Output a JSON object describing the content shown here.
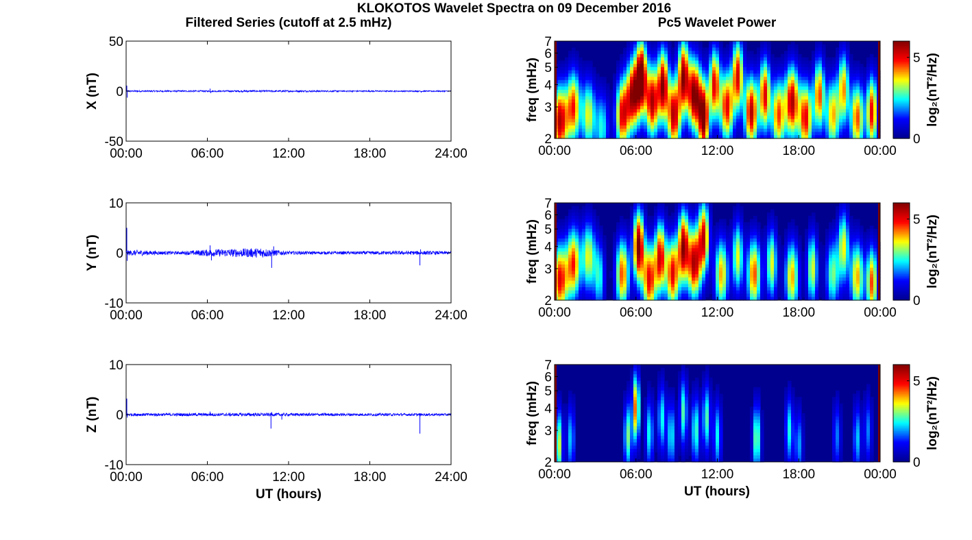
{
  "figure": {
    "title": "KLOKOTOS Wavelet Spectra on 09 December 2016",
    "left_title": "Filtered Series (cutoff at 2.5 mHz)",
    "right_title": "Pc5 Wavelet Power",
    "xlabel": "UT (hours)"
  },
  "colors": {
    "series_line": "#0000ff",
    "axis": "#000000",
    "colormap": [
      "#00008f",
      "#0000ff",
      "#00ffff",
      "#ffff00",
      "#ff0000",
      "#800000"
    ]
  },
  "chart_data": [
    {
      "type": "line",
      "panel": "X",
      "ylabel": "X (nT)",
      "ylim": [
        -50,
        50
      ],
      "yticks": [
        "50",
        "0",
        "-50"
      ],
      "xticks": [
        "00:00",
        "06:00",
        "12:00",
        "18:00",
        "24:00"
      ],
      "xlim_hours": [
        0,
        24
      ],
      "spikes": [
        {
          "t": 0.05,
          "v": 5.5
        },
        {
          "t": 0.08,
          "v": -6.5
        },
        {
          "t": 6.2,
          "v": 2.5
        },
        {
          "t": 6.25,
          "v": -2.0
        },
        {
          "t": 21.8,
          "v": -1.5
        }
      ],
      "envelope": [
        {
          "t": 0,
          "a": 0.8
        },
        {
          "t": 6,
          "a": 0.8
        },
        {
          "t": 9,
          "a": 1.0
        },
        {
          "t": 12,
          "a": 0.9
        },
        {
          "t": 18,
          "a": 0.7
        },
        {
          "t": 24,
          "a": 0.6
        }
      ]
    },
    {
      "type": "line",
      "panel": "Y",
      "ylabel": "Y (nT)",
      "ylim": [
        -10,
        10
      ],
      "yticks": [
        "10",
        "0",
        "-10"
      ],
      "xticks": [
        "00:00",
        "06:00",
        "12:00",
        "18:00",
        "24:00"
      ],
      "xlim_hours": [
        0,
        24
      ],
      "spikes": [
        {
          "t": 0.05,
          "v": 5.0
        },
        {
          "t": 0.08,
          "v": -1.6
        },
        {
          "t": 6.2,
          "v": 1.5
        },
        {
          "t": 6.3,
          "v": -1.5
        },
        {
          "t": 10.75,
          "v": -3.0
        },
        {
          "t": 10.9,
          "v": 1.3
        },
        {
          "t": 21.7,
          "v": -2.5
        },
        {
          "t": 21.75,
          "v": 0.7
        }
      ],
      "envelope": [
        {
          "t": 0,
          "a": 0.5
        },
        {
          "t": 1,
          "a": 0.6
        },
        {
          "t": 2,
          "a": 0.4
        },
        {
          "t": 4,
          "a": 0.3
        },
        {
          "t": 6,
          "a": 0.7
        },
        {
          "t": 8,
          "a": 0.8
        },
        {
          "t": 9,
          "a": 0.9
        },
        {
          "t": 10,
          "a": 1.0
        },
        {
          "t": 11,
          "a": 0.6
        },
        {
          "t": 12,
          "a": 0.35
        },
        {
          "t": 15,
          "a": 0.3
        },
        {
          "t": 18,
          "a": 0.35
        },
        {
          "t": 21,
          "a": 0.4
        },
        {
          "t": 23,
          "a": 0.35
        },
        {
          "t": 24,
          "a": 0.3
        }
      ]
    },
    {
      "type": "line",
      "panel": "Z",
      "ylabel": "Z (nT)",
      "ylim": [
        -10,
        10
      ],
      "yticks": [
        "10",
        "0",
        "-10"
      ],
      "xticks": [
        "00:00",
        "06:00",
        "12:00",
        "18:00",
        "24:00"
      ],
      "xlim_hours": [
        0,
        24
      ],
      "spikes": [
        {
          "t": 0.05,
          "v": 3.2
        },
        {
          "t": 0.08,
          "v": -0.6
        },
        {
          "t": 6.2,
          "v": 0.6
        },
        {
          "t": 10.7,
          "v": -2.8
        },
        {
          "t": 10.75,
          "v": 0.5
        },
        {
          "t": 11.5,
          "v": -1.0
        },
        {
          "t": 21.7,
          "v": -3.8
        }
      ],
      "envelope": [
        {
          "t": 0,
          "a": 0.3
        },
        {
          "t": 6,
          "a": 0.3
        },
        {
          "t": 10,
          "a": 0.35
        },
        {
          "t": 12,
          "a": 0.3
        },
        {
          "t": 24,
          "a": 0.25
        }
      ]
    },
    {
      "type": "heatmap",
      "panel": "X",
      "ylabel": "freq (mHz)",
      "ylim": [
        2,
        7
      ],
      "yscale": "log",
      "yticks": [
        "7",
        "6",
        "5",
        "4",
        "3",
        "2"
      ],
      "xticks": [
        "00:00",
        "06:00",
        "12:00",
        "18:00",
        "00:00"
      ],
      "xlim_hours": [
        0,
        24
      ],
      "colorbar": {
        "label": "log₂(nT²/Hz)",
        "ticks": [
          "5",
          "0"
        ],
        "range": [
          0,
          6
        ]
      },
      "edge_columns": [
        0,
        24
      ],
      "blobs": [
        {
          "t": 0.4,
          "f": 2.5,
          "p": 5.5,
          "wt": 0.6
        },
        {
          "t": 1.4,
          "f": 3.0,
          "p": 4.5,
          "wt": 0.5
        },
        {
          "t": 2.5,
          "f": 2.7,
          "p": 3.5,
          "wt": 0.5
        },
        {
          "t": 3.5,
          "f": 2.3,
          "p": 2.5,
          "wt": 0.5
        },
        {
          "t": 5.0,
          "f": 2.7,
          "p": 5.0,
          "wt": 0.5
        },
        {
          "t": 5.8,
          "f": 3.5,
          "p": 5.5,
          "wt": 0.5
        },
        {
          "t": 6.4,
          "f": 4.5,
          "p": 6.0,
          "wt": 0.4
        },
        {
          "t": 7.2,
          "f": 3.2,
          "p": 5.5,
          "wt": 0.5
        },
        {
          "t": 8.0,
          "f": 4.0,
          "p": 5.5,
          "wt": 0.4
        },
        {
          "t": 8.8,
          "f": 2.7,
          "p": 5.5,
          "wt": 0.5
        },
        {
          "t": 9.5,
          "f": 4.5,
          "p": 5.5,
          "wt": 0.4
        },
        {
          "t": 10.3,
          "f": 3.5,
          "p": 6.0,
          "wt": 0.5
        },
        {
          "t": 11.0,
          "f": 2.6,
          "p": 6.0,
          "wt": 0.4
        },
        {
          "t": 11.8,
          "f": 4.0,
          "p": 5.0,
          "wt": 0.4
        },
        {
          "t": 12.7,
          "f": 3.0,
          "p": 5.0,
          "wt": 0.5
        },
        {
          "t": 13.5,
          "f": 4.5,
          "p": 5.0,
          "wt": 0.4
        },
        {
          "t": 14.5,
          "f": 2.8,
          "p": 5.5,
          "wt": 0.5
        },
        {
          "t": 15.5,
          "f": 3.5,
          "p": 5.0,
          "wt": 0.4
        },
        {
          "t": 16.5,
          "f": 2.7,
          "p": 4.5,
          "wt": 0.5
        },
        {
          "t": 17.5,
          "f": 3.2,
          "p": 5.5,
          "wt": 0.5
        },
        {
          "t": 18.5,
          "f": 2.6,
          "p": 5.0,
          "wt": 0.5
        },
        {
          "t": 19.5,
          "f": 3.5,
          "p": 4.5,
          "wt": 0.4
        },
        {
          "t": 20.5,
          "f": 2.7,
          "p": 4.0,
          "wt": 0.5
        },
        {
          "t": 21.3,
          "f": 3.8,
          "p": 4.0,
          "wt": 0.4
        },
        {
          "t": 22.3,
          "f": 2.6,
          "p": 4.5,
          "wt": 0.5
        },
        {
          "t": 23.4,
          "f": 2.8,
          "p": 5.0,
          "wt": 0.4
        }
      ]
    },
    {
      "type": "heatmap",
      "panel": "Y",
      "ylabel": "freq (mHz)",
      "ylim": [
        2,
        7
      ],
      "yscale": "log",
      "yticks": [
        "7",
        "6",
        "5",
        "4",
        "3",
        "2"
      ],
      "xticks": [
        "00:00",
        "06:00",
        "12:00",
        "18:00",
        "00:00"
      ],
      "xlim_hours": [
        0,
        24
      ],
      "colorbar": {
        "label": "log₂(nT²/Hz)",
        "ticks": [
          "5",
          "0"
        ],
        "range": [
          0,
          6
        ]
      },
      "edge_columns": [
        0,
        24
      ],
      "blobs": [
        {
          "t": 0.4,
          "f": 2.6,
          "p": 5.0,
          "wt": 0.6
        },
        {
          "t": 1.4,
          "f": 3.2,
          "p": 4.5,
          "wt": 0.5
        },
        {
          "t": 2.5,
          "f": 3.5,
          "p": 3.5,
          "wt": 0.5
        },
        {
          "t": 3.3,
          "f": 2.7,
          "p": 2.5,
          "wt": 0.4
        },
        {
          "t": 5.0,
          "f": 2.8,
          "p": 4.5,
          "wt": 0.5
        },
        {
          "t": 6.2,
          "f": 4.0,
          "p": 6.0,
          "wt": 0.4
        },
        {
          "t": 7.0,
          "f": 2.6,
          "p": 5.0,
          "wt": 0.5
        },
        {
          "t": 7.8,
          "f": 3.5,
          "p": 5.0,
          "wt": 0.4
        },
        {
          "t": 8.7,
          "f": 2.8,
          "p": 5.0,
          "wt": 0.5
        },
        {
          "t": 9.5,
          "f": 4.0,
          "p": 5.5,
          "wt": 0.4
        },
        {
          "t": 10.3,
          "f": 3.2,
          "p": 5.5,
          "wt": 0.5
        },
        {
          "t": 11.0,
          "f": 4.5,
          "p": 5.0,
          "wt": 0.4
        },
        {
          "t": 12.3,
          "f": 2.8,
          "p": 4.0,
          "wt": 0.5
        },
        {
          "t": 13.5,
          "f": 3.5,
          "p": 3.5,
          "wt": 0.4
        },
        {
          "t": 14.7,
          "f": 2.8,
          "p": 4.5,
          "wt": 0.5
        },
        {
          "t": 16.0,
          "f": 3.2,
          "p": 3.5,
          "wt": 0.4
        },
        {
          "t": 17.5,
          "f": 2.7,
          "p": 4.0,
          "wt": 0.5
        },
        {
          "t": 19.0,
          "f": 3.0,
          "p": 3.5,
          "wt": 0.4
        },
        {
          "t": 20.5,
          "f": 2.8,
          "p": 3.0,
          "wt": 0.5
        },
        {
          "t": 21.3,
          "f": 4.0,
          "p": 3.5,
          "wt": 0.4
        },
        {
          "t": 22.3,
          "f": 2.7,
          "p": 4.0,
          "wt": 0.5
        },
        {
          "t": 23.4,
          "f": 2.5,
          "p": 4.5,
          "wt": 0.4
        }
      ]
    },
    {
      "type": "heatmap",
      "panel": "Z",
      "ylabel": "freq (mHz)",
      "ylim": [
        2,
        7
      ],
      "yscale": "log",
      "yticks": [
        "7",
        "6",
        "5",
        "4",
        "3",
        "2"
      ],
      "xticks": [
        "00:00",
        "06:00",
        "12:00",
        "18:00",
        "00:00"
      ],
      "xlim_hours": [
        0,
        24
      ],
      "colorbar": {
        "label": "log₂(nT²/Hz)",
        "ticks": [
          "5",
          "0"
        ],
        "range": [
          0,
          6
        ]
      },
      "edge_columns": [
        0,
        24
      ],
      "blobs": [
        {
          "t": 0.3,
          "f": 2.5,
          "p": 3.5,
          "wt": 0.3
        },
        {
          "t": 1.2,
          "f": 2.7,
          "p": 2.2,
          "wt": 0.3
        },
        {
          "t": 5.4,
          "f": 2.8,
          "p": 3.0,
          "wt": 0.3
        },
        {
          "t": 6.0,
          "f": 4.0,
          "p": 4.5,
          "wt": 0.25
        },
        {
          "t": 7.0,
          "f": 2.9,
          "p": 2.5,
          "wt": 0.3
        },
        {
          "t": 7.9,
          "f": 3.5,
          "p": 2.5,
          "wt": 0.3
        },
        {
          "t": 8.6,
          "f": 2.8,
          "p": 2.5,
          "wt": 0.3
        },
        {
          "t": 9.5,
          "f": 3.8,
          "p": 2.8,
          "wt": 0.3
        },
        {
          "t": 10.4,
          "f": 3.0,
          "p": 2.8,
          "wt": 0.3
        },
        {
          "t": 11.2,
          "f": 3.5,
          "p": 2.8,
          "wt": 0.3
        },
        {
          "t": 12.0,
          "f": 2.8,
          "p": 2.4,
          "wt": 0.3
        },
        {
          "t": 14.9,
          "f": 2.7,
          "p": 3.2,
          "wt": 0.3
        },
        {
          "t": 17.3,
          "f": 3.0,
          "p": 2.5,
          "wt": 0.3
        },
        {
          "t": 18.0,
          "f": 2.5,
          "p": 2.0,
          "wt": 0.3
        },
        {
          "t": 20.8,
          "f": 2.8,
          "p": 1.8,
          "wt": 0.3
        },
        {
          "t": 22.3,
          "f": 2.7,
          "p": 2.2,
          "wt": 0.3
        },
        {
          "t": 23.1,
          "f": 3.0,
          "p": 1.8,
          "wt": 0.3
        }
      ]
    }
  ]
}
